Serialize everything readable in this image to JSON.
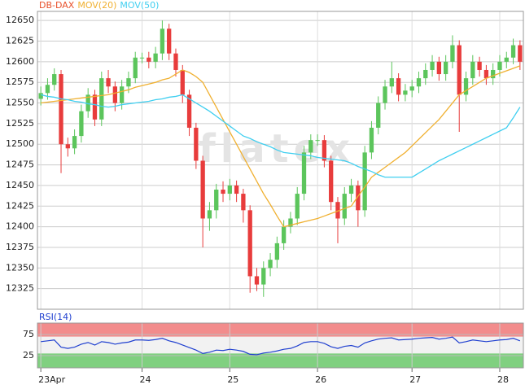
{
  "chart_data": [
    {
      "type": "candlestick",
      "name": "DB-DAX",
      "watermark": "flatex",
      "up_color": "#5cc55c",
      "down_color": "#e83c3c",
      "name_color": "#e8502a",
      "ylim": [
        12300,
        12661
      ],
      "yticks": [
        12325,
        12350,
        12375,
        12400,
        12425,
        12450,
        12475,
        12500,
        12525,
        12550,
        12575,
        12600,
        12625,
        12650
      ],
      "grid": true,
      "open": [
        12555,
        12562,
        12572,
        12585,
        12500,
        12495,
        12510,
        12540,
        12560,
        12530,
        12580,
        12570,
        12550,
        12570,
        12580,
        12605,
        12605,
        12600,
        12610,
        12640,
        12610,
        12590,
        12560,
        12520,
        12480,
        12410,
        12420,
        12445,
        12440,
        12450,
        12440,
        12420,
        12340,
        12330,
        12350,
        12360,
        12380,
        12400,
        12410,
        12440,
        12490,
        12505,
        12505,
        12480,
        12430,
        12410,
        12440,
        12450,
        12420,
        12490,
        12520,
        12550,
        12570,
        12580,
        12560,
        12565,
        12570,
        12580,
        12590,
        12600,
        12585,
        12600,
        12620,
        12560,
        12580,
        12600,
        12590,
        12580,
        12590,
        12600,
        12605,
        12620
      ],
      "high": [
        12570,
        12580,
        12592,
        12590,
        12508,
        12518,
        12548,
        12568,
        12566,
        12588,
        12590,
        12576,
        12578,
        12588,
        12612,
        12611,
        12612,
        12618,
        12650,
        12646,
        12616,
        12596,
        12566,
        12526,
        12486,
        12430,
        12452,
        12455,
        12458,
        12456,
        12446,
        12426,
        12350,
        12358,
        12368,
        12388,
        12408,
        12418,
        12448,
        12498,
        12512,
        12512,
        12511,
        12486,
        12436,
        12448,
        12458,
        12456,
        12498,
        12528,
        12558,
        12578,
        12600,
        12586,
        12573,
        12578,
        12588,
        12598,
        12608,
        12606,
        12608,
        12632,
        12626,
        12588,
        12608,
        12606,
        12596,
        12598,
        12608,
        12612,
        12628,
        12626
      ],
      "low": [
        12547,
        12554,
        12565,
        12465,
        12485,
        12488,
        12502,
        12532,
        12522,
        12522,
        12562,
        12540,
        12542,
        12562,
        12574,
        12598,
        12592,
        12592,
        12602,
        12602,
        12582,
        12550,
        12510,
        12470,
        12375,
        12395,
        12410,
        12430,
        12432,
        12430,
        12405,
        12320,
        12322,
        12315,
        12340,
        12350,
        12372,
        12392,
        12402,
        12432,
        12482,
        12498,
        12472,
        12420,
        12380,
        12402,
        12430,
        12400,
        12412,
        12482,
        12512,
        12542,
        12562,
        12552,
        12552,
        12557,
        12562,
        12572,
        12582,
        12577,
        12577,
        12592,
        12515,
        12552,
        12572,
        12582,
        12572,
        12572,
        12582,
        12592,
        12597,
        12590
      ],
      "close": [
        12562,
        12572,
        12585,
        12500,
        12495,
        12510,
        12540,
        12560,
        12530,
        12580,
        12570,
        12550,
        12570,
        12580,
        12605,
        12605,
        12600,
        12610,
        12640,
        12610,
        12590,
        12560,
        12520,
        12480,
        12410,
        12420,
        12445,
        12440,
        12450,
        12440,
        12420,
        12340,
        12330,
        12350,
        12360,
        12380,
        12400,
        12410,
        12440,
        12490,
        12505,
        12505,
        12480,
        12430,
        12410,
        12440,
        12450,
        12420,
        12490,
        12520,
        12550,
        12570,
        12580,
        12560,
        12565,
        12570,
        12580,
        12590,
        12600,
        12585,
        12600,
        12620,
        12560,
        12580,
        12600,
        12590,
        12580,
        12590,
        12600,
        12605,
        12620,
        12600
      ],
      "series": [
        {
          "name": "MOV(20)",
          "color": "#f0b030",
          "values": [
            12550,
            12551,
            12552,
            12553,
            12554,
            12555,
            12556,
            12557,
            12558,
            12559,
            12560,
            12562,
            12564,
            12566,
            12569,
            12571,
            12573,
            12575,
            12578,
            12580,
            12585,
            12590,
            12587,
            12582,
            12575,
            12560,
            12545,
            12530,
            12515,
            12500,
            12485,
            12470,
            12455,
            12440,
            12427,
            12413,
            12400,
            12402,
            12404,
            12406,
            12408,
            12410,
            12413,
            12416,
            12419,
            12422,
            12425,
            12437,
            12448,
            12460,
            12466,
            12472,
            12478,
            12484,
            12490,
            12498,
            12506,
            12514,
            12522,
            12530,
            12540,
            12550,
            12560,
            12565,
            12570,
            12575,
            12580,
            12583,
            12586,
            12589,
            12592,
            12595
          ]
        },
        {
          "name": "MOV(50)",
          "color": "#40cff0",
          "values": [
            12560,
            12558,
            12557,
            12555,
            12554,
            12552,
            12551,
            12549,
            12548,
            12546,
            12545,
            12546,
            12548,
            12549,
            12550,
            12551,
            12552,
            12554,
            12555,
            12557,
            12558,
            12560,
            12555,
            12550,
            12545,
            12540,
            12534,
            12528,
            12522,
            12516,
            12510,
            12507,
            12503,
            12500,
            12497,
            12493,
            12490,
            12489,
            12488,
            12487,
            12486,
            12484,
            12483,
            12482,
            12481,
            12480,
            12477,
            12473,
            12470,
            12467,
            12463,
            12460,
            12460,
            12460,
            12460,
            12460,
            12465,
            12470,
            12475,
            12480,
            12484,
            12488,
            12492,
            12496,
            12500,
            12504,
            12508,
            12512,
            12516,
            12520,
            12532,
            12545
          ]
        }
      ]
    },
    {
      "type": "line",
      "title": "RSI(14)",
      "categories": [
        "23Apr",
        null,
        null,
        null,
        null,
        null,
        null,
        null,
        null,
        null,
        null,
        null,
        null,
        null,
        null,
        "24",
        null,
        null,
        null,
        null,
        null,
        null,
        null,
        null,
        null,
        null,
        null,
        null,
        "25",
        null,
        null,
        null,
        null,
        null,
        null,
        null,
        null,
        null,
        null,
        null,
        null,
        "26",
        null,
        null,
        null,
        null,
        null,
        null,
        null,
        null,
        null,
        null,
        null,
        null,
        null,
        "27",
        null,
        null,
        null,
        null,
        null,
        null,
        null,
        null,
        null,
        null,
        null,
        null,
        "28",
        null,
        null,
        null
      ],
      "ylim": [
        -4,
        102
      ],
      "yticks": [
        25,
        75
      ],
      "overbought": 70,
      "oversold": 30,
      "overbought_color": "#f28c8c",
      "oversold_color": "#80d080",
      "series": [
        {
          "name": "RSI(14)",
          "color": "#2040d0",
          "values": [
            58,
            60,
            62,
            45,
            42,
            45,
            52,
            56,
            50,
            58,
            56,
            52,
            55,
            57,
            62,
            62,
            61,
            63,
            66,
            60,
            56,
            50,
            44,
            38,
            30,
            33,
            38,
            37,
            40,
            38,
            35,
            28,
            27,
            31,
            33,
            36,
            40,
            42,
            48,
            56,
            58,
            58,
            54,
            46,
            42,
            47,
            49,
            45,
            55,
            60,
            64,
            66,
            67,
            62,
            63,
            64,
            66,
            67,
            68,
            64,
            66,
            69,
            55,
            58,
            62,
            60,
            58,
            60,
            62,
            63,
            66,
            60
          ]
        }
      ]
    }
  ]
}
